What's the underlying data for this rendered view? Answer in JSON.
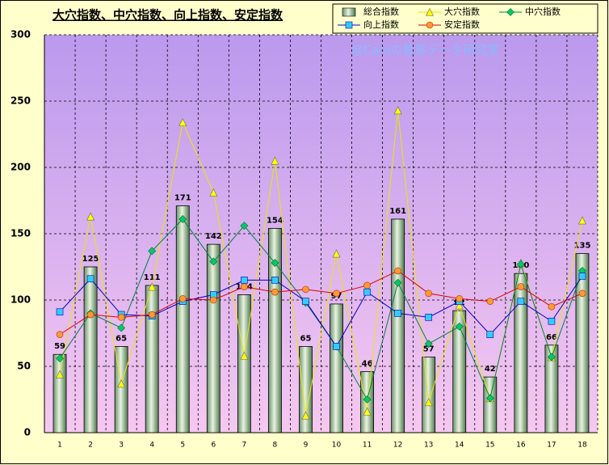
{
  "chart_data": {
    "type": "bar",
    "title": "大穴指数、中穴指数、向上指数、安定指数",
    "watermark": "@Caniの競馬データ研究室",
    "categories": [
      1,
      2,
      3,
      4,
      5,
      6,
      7,
      8,
      9,
      10,
      11,
      12,
      13,
      14,
      15,
      16,
      17,
      18
    ],
    "ylim": [
      0,
      300
    ],
    "yticks": [
      0,
      50,
      100,
      150,
      200,
      250,
      300
    ],
    "grid": true,
    "series": [
      {
        "name": "総合指数",
        "type": "bar",
        "color": "#6b9a6b",
        "values": [
          59,
          125,
          65,
          111,
          171,
          142,
          104,
          154,
          65,
          97,
          46,
          161,
          57,
          92,
          42,
          120,
          66,
          135
        ]
      },
      {
        "name": "大穴指数",
        "type": "line",
        "marker": "triangle",
        "color": "#ffff00",
        "line_color": "#e8e800",
        "values": [
          44,
          163,
          37,
          110,
          234,
          181,
          58,
          205,
          13,
          135,
          16,
          243,
          23,
          96,
          26,
          128,
          57,
          160
        ]
      },
      {
        "name": "中穴指数",
        "type": "line",
        "marker": "diamond",
        "color": "#00cc66",
        "line_color": "#008040",
        "values": [
          56,
          90,
          79,
          137,
          161,
          129,
          156,
          128,
          98,
          65,
          25,
          113,
          67,
          80,
          26,
          127,
          57,
          122
        ]
      },
      {
        "name": "向上指数",
        "type": "line",
        "marker": "square",
        "color": "#33ccff",
        "line_color": "#0000cc",
        "values": [
          91,
          116,
          89,
          88,
          99,
          104,
          115,
          115,
          99,
          65,
          106,
          90,
          87,
          99,
          74,
          99,
          84,
          118
        ]
      },
      {
        "name": "安定指数",
        "type": "line",
        "marker": "circle",
        "color": "#ff9933",
        "line_color": "#dd0000",
        "values": [
          74,
          89,
          87,
          89,
          101,
          100,
          110,
          106,
          108,
          105,
          111,
          122,
          105,
          101,
          99,
          110,
          95,
          105
        ]
      }
    ]
  }
}
